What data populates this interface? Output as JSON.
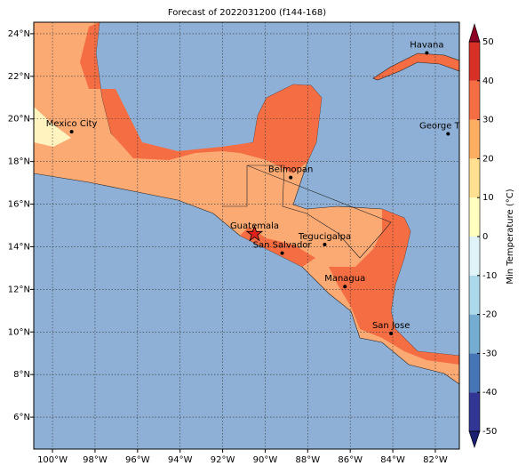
{
  "title": "Forecast of 2022031200 (f144-168)",
  "lonlim": [
    -100.88,
    -80.87
  ],
  "latlim": [
    4.5,
    24.54
  ],
  "lon_ticks": [
    {
      "value": -100,
      "label": "100°W"
    },
    {
      "value": -98,
      "label": "98°W"
    },
    {
      "value": -96,
      "label": "96°W"
    },
    {
      "value": -94,
      "label": "94°W"
    },
    {
      "value": -92,
      "label": "92°W"
    },
    {
      "value": -90,
      "label": "90°W"
    },
    {
      "value": -88,
      "label": "88°W"
    },
    {
      "value": -86,
      "label": "86°W"
    },
    {
      "value": -84,
      "label": "84°W"
    },
    {
      "value": -82,
      "label": "82°W"
    }
  ],
  "lat_ticks": [
    {
      "value": 6,
      "label": "6°N"
    },
    {
      "value": 8,
      "label": "8°N"
    },
    {
      "value": 10,
      "label": "10°N"
    },
    {
      "value": 12,
      "label": "12°N"
    },
    {
      "value": 14,
      "label": "14°N"
    },
    {
      "value": 16,
      "label": "16°N"
    },
    {
      "value": 18,
      "label": "18°N"
    },
    {
      "value": 20,
      "label": "20°N"
    },
    {
      "value": 22,
      "label": "22°N"
    },
    {
      "value": 24,
      "label": "24°N"
    }
  ],
  "cities": [
    {
      "name": "Havana",
      "lon": -82.4,
      "lat": 23.1
    },
    {
      "name": "Mexico City",
      "lon": -99.1,
      "lat": 19.4
    },
    {
      "name": "George Town",
      "lon": -81.4,
      "lat": 19.3
    },
    {
      "name": "Belmopan",
      "lon": -88.8,
      "lat": 17.25
    },
    {
      "name": "Guatemala",
      "lon": -90.5,
      "lat": 14.6,
      "star": true
    },
    {
      "name": "San Salvador",
      "lon": -89.2,
      "lat": 13.7
    },
    {
      "name": "Tegucigalpa",
      "lon": -87.2,
      "lat": 14.1
    },
    {
      "name": "Managua",
      "lon": -86.25,
      "lat": 12.13
    },
    {
      "name": "San Jose",
      "lon": -84.08,
      "lat": 9.93
    }
  ],
  "colorbar": {
    "label": "Min Temperature (°C)",
    "lim": [
      -50,
      50
    ],
    "ticks": [
      -50,
      -40,
      -30,
      -20,
      -10,
      0,
      10,
      20,
      30,
      40,
      50
    ],
    "colors": [
      "#313695",
      "#4575b4",
      "#74add1",
      "#abd9e9",
      "#e0f3f8",
      "#ffffbf",
      "#fee090",
      "#fdae61",
      "#f46d43",
      "#d73027"
    ],
    "under": "#1a1f70",
    "over": "#8b0025"
  }
}
